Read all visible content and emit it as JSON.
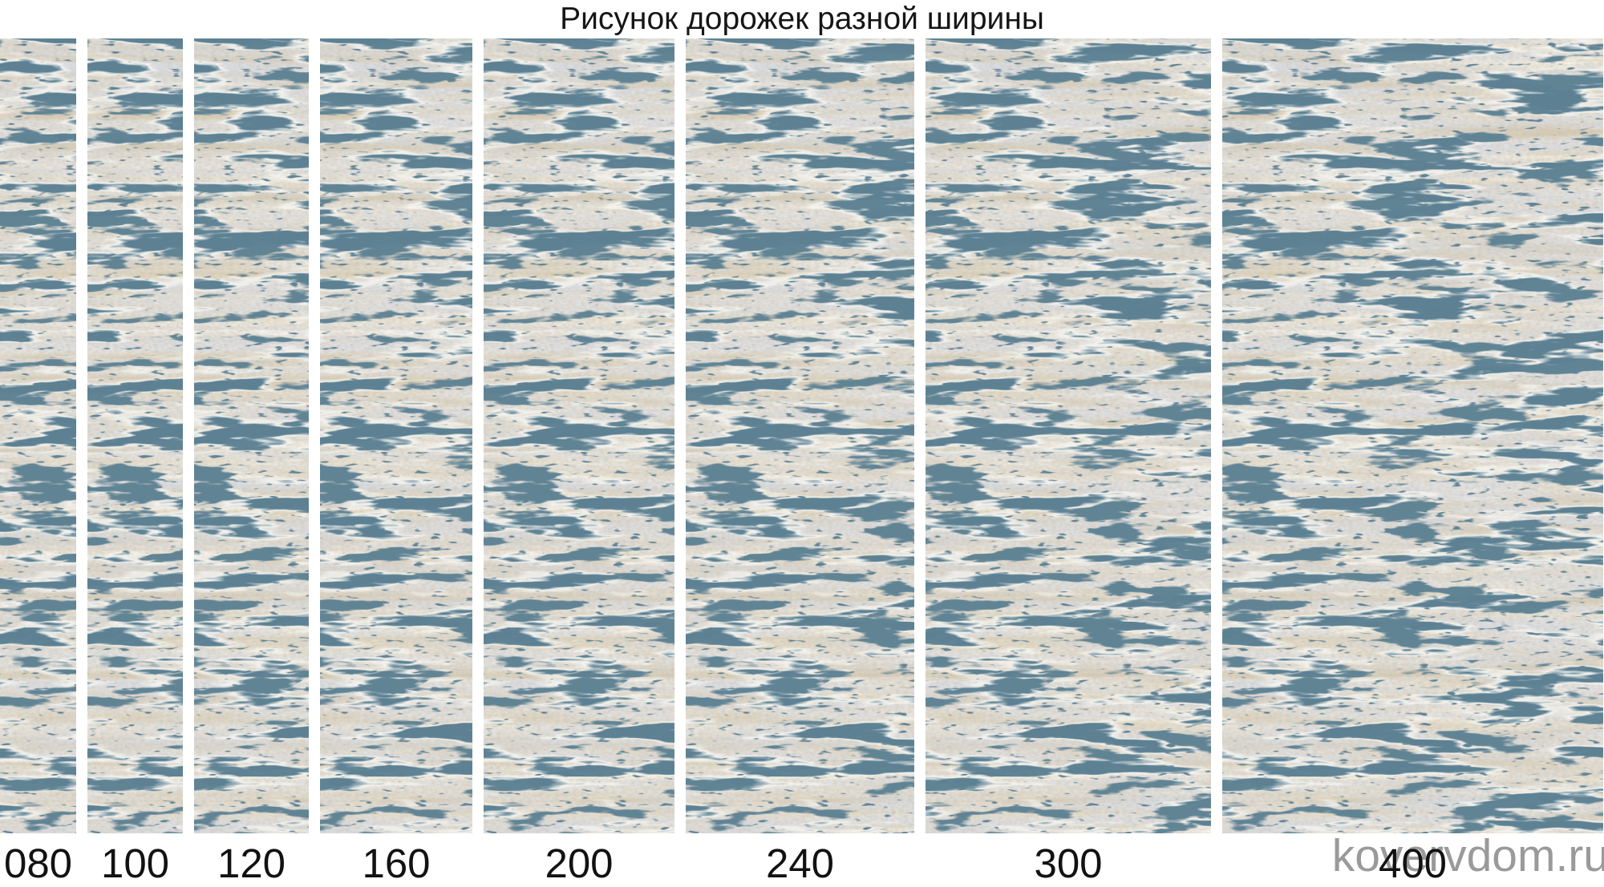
{
  "title": "Рисунок дорожек разной ширины",
  "watermark": "kovervdom.ru",
  "strips": [
    {
      "label": "080",
      "width_cm": 80
    },
    {
      "label": "100",
      "width_cm": 100
    },
    {
      "label": "120",
      "width_cm": 120
    },
    {
      "label": "160",
      "width_cm": 160
    },
    {
      "label": "200",
      "width_cm": 200
    },
    {
      "label": "240",
      "width_cm": 240
    },
    {
      "label": "300",
      "width_cm": 300
    },
    {
      "label": "400",
      "width_cm": 400
    }
  ],
  "colors": {
    "background": "#ffffff",
    "carpet_base": "#d8ccb2",
    "carpet_dark_navy": "#1d3a4a",
    "carpet_gray_band": "#c1c1c3",
    "carpet_cream_band": "#ece2cc",
    "carpet_blue_gray": "#b3b9c4",
    "label_text": "#121212",
    "title_text": "#161616",
    "watermark_text": "#9a9a9a"
  }
}
